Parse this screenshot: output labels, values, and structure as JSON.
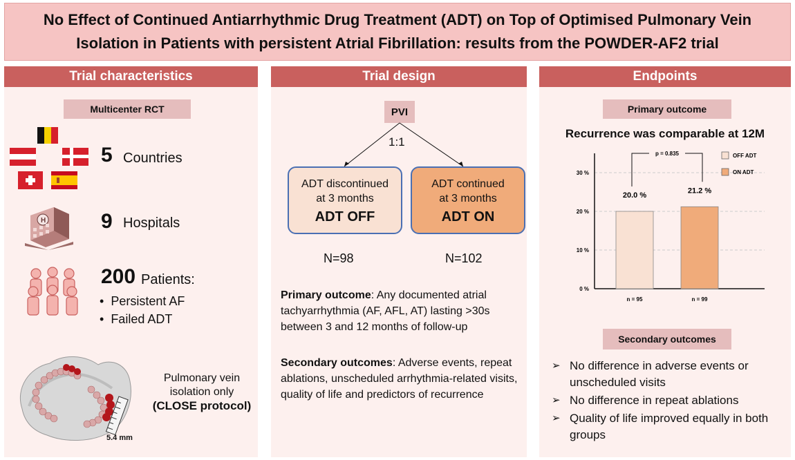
{
  "title": {
    "line1": "No Effect of Continued Antiarrhythmic Drug Treatment (ADT) on Top of Optimised Pulmonary Vein",
    "line2": "Isolation in Patients with persistent Atrial Fibrillation: results from the POWDER-AF2 trial"
  },
  "left": {
    "header": "Trial characteristics",
    "pill": "Multicenter RCT",
    "countries_num": "5",
    "countries_label": "Countries",
    "hospitals_num": "9",
    "hospitals_label": "Hospitals",
    "patients_num": "200",
    "patients_label": "Patients:",
    "bullets": [
      "Persistent AF",
      "Failed ADT"
    ],
    "pvi_caption": [
      "Pulmonary vein",
      "isolation only"
    ],
    "pvi_caption_bold": "(CLOSE protocol)",
    "scale_label": "5.4 mm",
    "flags": [
      "belgium-flag",
      "austria-flag",
      "denmark-flag",
      "switzerland-flag",
      "spain-flag"
    ]
  },
  "mid": {
    "header": "Trial design",
    "root": "PVI",
    "ratio": "1:1",
    "off": {
      "line1": "ADT discontinued",
      "line2": "at 3 months",
      "strong": "ADT OFF",
      "n": "N=98"
    },
    "on": {
      "line1": "ADT continued",
      "line2": "at 3 months",
      "strong": "ADT ON",
      "n": "N=102"
    },
    "primary_label": "Primary outcome",
    "primary_text": ": Any documented atrial tachyarrhythmia (AF, AFL, AT) lasting >30s between 3 and 12 months of follow-up",
    "secondary_label": "Secondary outcomes",
    "secondary_text": ": Adverse events, repeat ablations, unscheduled arrhythmia-related visits, quality of life and predictors of recurrence"
  },
  "right": {
    "header": "Endpoints",
    "primary_pill": "Primary outcome",
    "chart_title": "Recurrence was comparable at 12M",
    "secondary_pill": "Secondary outcomes",
    "findings": [
      "No difference in adverse events or unscheduled visits",
      "No difference in repeat ablations",
      "Quality of life improved equally in both groups"
    ]
  },
  "colors": {
    "title_bg": "#f6c4c3",
    "header_bg": "#c9605e",
    "panel_bg": "#fdf0ee",
    "pill_bg": "#e5bdbd",
    "off_adt": "#f9e1d3",
    "on_adt": "#f0ab7a",
    "box_border": "#4a6fb3"
  },
  "chart_data": {
    "type": "bar",
    "categories": [
      "OFF ADT",
      "ON ADT"
    ],
    "values": [
      20.0,
      21.2
    ],
    "value_labels": [
      "20.0 %",
      "21.2 %"
    ],
    "n_labels": [
      "n = 95",
      "n = 99"
    ],
    "ylim": [
      0,
      35
    ],
    "yticks": [
      "0 %",
      "10 %",
      "20 %",
      "30 %"
    ],
    "ytick_values": [
      0,
      10,
      20,
      30
    ],
    "annotation": "p = 0.835",
    "legend": [
      "OFF ADT",
      "ON ADT"
    ],
    "legend_position": "top-right",
    "grid": true
  }
}
